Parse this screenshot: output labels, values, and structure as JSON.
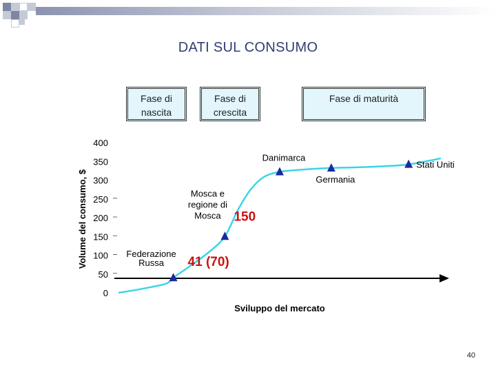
{
  "slide": {
    "title": "DATI SUL CONSUMO",
    "page_number": "40"
  },
  "phases": [
    {
      "label_line1": "Fase di",
      "label_line2": "nascita"
    },
    {
      "label_line1": "Fase di",
      "label_line2": "crescita"
    },
    {
      "label_line1": "Fase di maturità",
      "label_line2": ""
    }
  ],
  "colors": {
    "curve": "#3ad5e8",
    "marker": "#1a2b9c",
    "callout": "#cc1111",
    "axis": "#000000",
    "phase_box_fill": "#e2f6fb",
    "title": "#2f3e73"
  },
  "chart_data": {
    "type": "line",
    "ylabel": "Volume del consumo, $",
    "xlabel": "Sviluppo del mercato",
    "ylim": [
      0,
      400
    ],
    "yticks": [
      "0",
      "50",
      "100",
      "150",
      "200",
      "250",
      "300",
      "350",
      "400"
    ],
    "ytick_values": [
      0,
      50,
      100,
      150,
      200,
      250,
      300,
      350,
      400
    ],
    "grid": false,
    "x_axis_arrow": true,
    "series": [
      {
        "values": [
          [
            0,
            0
          ],
          [
            5,
            7
          ],
          [
            10,
            15
          ],
          [
            15,
            25
          ],
          [
            17,
            40
          ],
          [
            22,
            70
          ],
          [
            28,
            108
          ],
          [
            33,
            150
          ],
          [
            37,
            220
          ],
          [
            41,
            275
          ],
          [
            45,
            308
          ],
          [
            50,
            322
          ],
          [
            57,
            328
          ],
          [
            65,
            332
          ],
          [
            73,
            334
          ],
          [
            82,
            337
          ],
          [
            90,
            342
          ],
          [
            100,
            358
          ]
        ]
      }
    ],
    "points": [
      {
        "label": "Federazione Russa",
        "x": 17,
        "y": 40
      },
      {
        "label": "Mosca e regione di Mosca",
        "x": 33,
        "y": 150
      },
      {
        "label": "Danimarca",
        "x": 50,
        "y": 322
      },
      {
        "label": "Germania",
        "x": 66,
        "y": 332
      },
      {
        "label": "Stati Uniti",
        "x": 90,
        "y": 342
      }
    ],
    "annotations": [
      {
        "text": "150",
        "for": "Mosca e regione di Mosca"
      },
      {
        "text": "41 (70)",
        "for": "Federazione Russa"
      }
    ]
  }
}
